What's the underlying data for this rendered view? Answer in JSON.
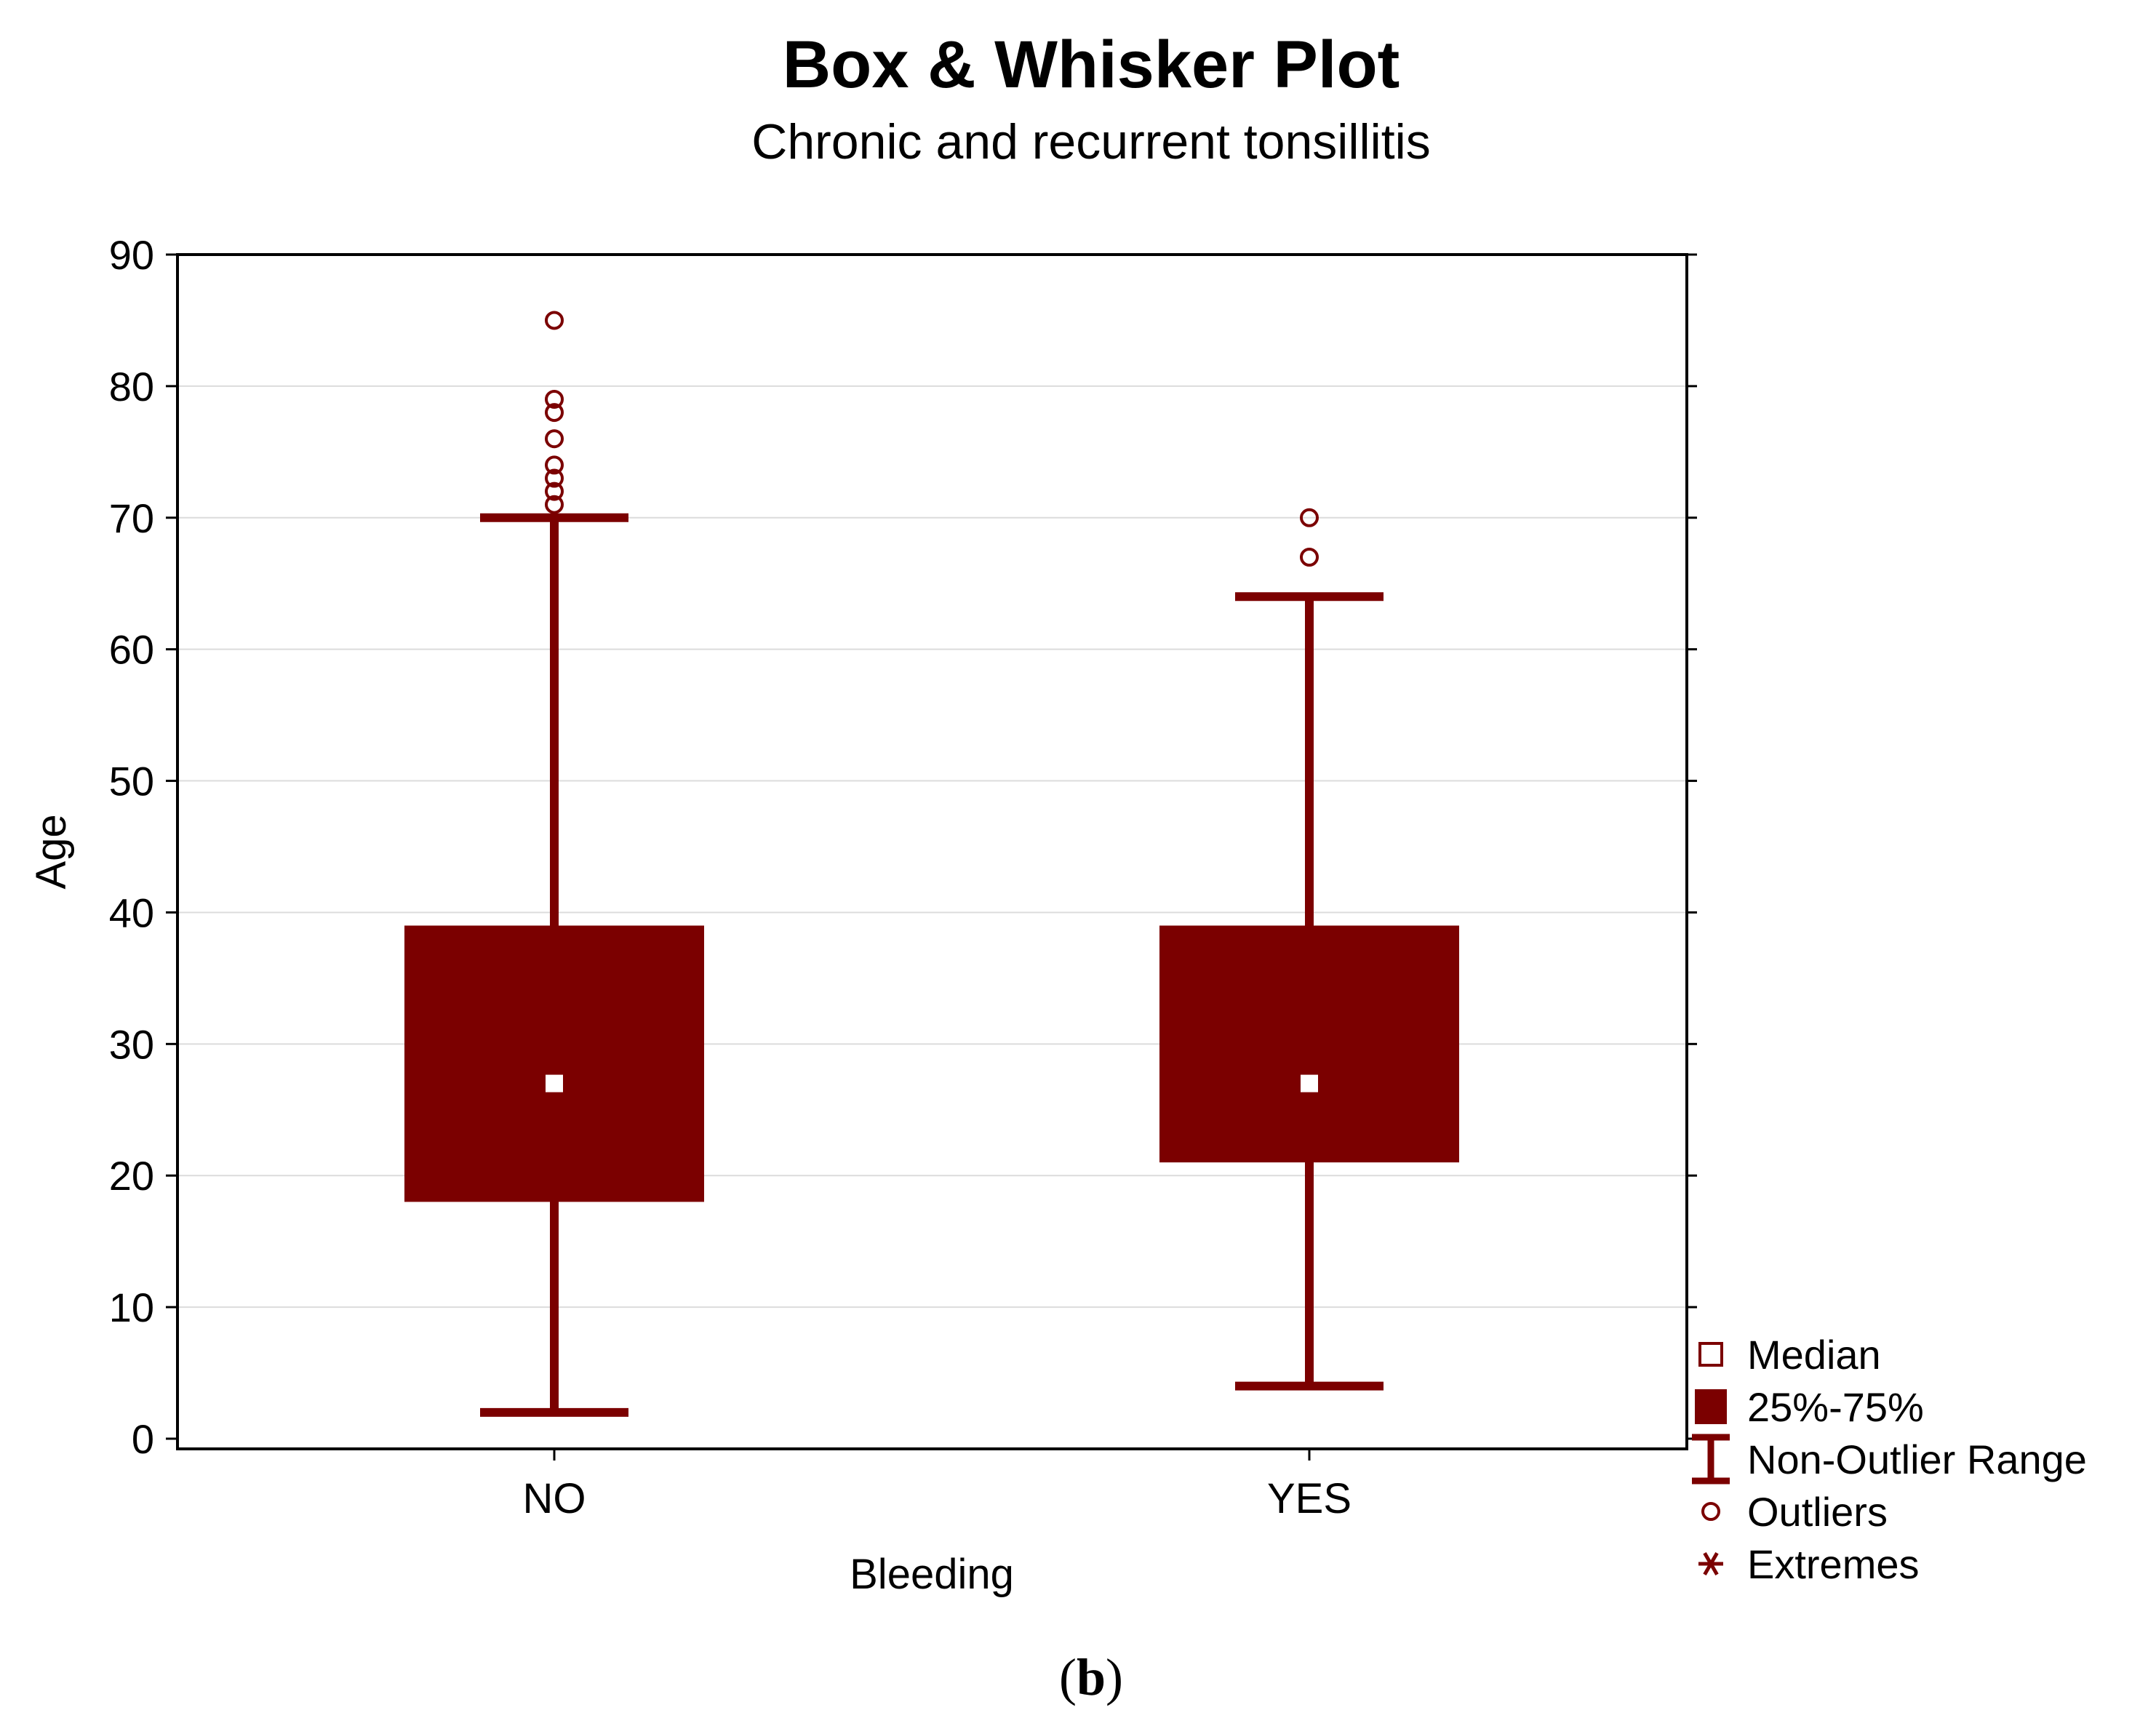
{
  "chart_data": {
    "type": "box",
    "title": "Box & Whisker Plot",
    "subtitle": "Chronic and recurrent tonsillitis",
    "xlabel": "Bleeding",
    "ylabel": "Age",
    "ylim": [
      0,
      90
    ],
    "yticks": [
      0,
      10,
      20,
      30,
      40,
      50,
      60,
      70,
      80,
      90
    ],
    "grid": true,
    "categories": [
      "NO",
      "YES"
    ],
    "boxes": [
      {
        "category": "NO",
        "median": 27,
        "q1": 18,
        "q3": 39,
        "whisker_low": 2,
        "whisker_high": 70,
        "outliers": [
          71,
          72,
          73,
          74,
          76,
          78,
          79,
          85
        ]
      },
      {
        "category": "YES",
        "median": 27,
        "q1": 21,
        "q3": 39,
        "whisker_low": 4,
        "whisker_high": 64,
        "outliers": [
          67,
          70
        ]
      }
    ],
    "legend": {
      "position": "bottom-right",
      "items": [
        {
          "symbol": "median-square-icon",
          "label": "Median"
        },
        {
          "symbol": "box-fill-icon",
          "label": "25%-75%"
        },
        {
          "symbol": "whisker-range-icon",
          "label": "Non-Outlier Range"
        },
        {
          "symbol": "outlier-circle-icon",
          "label": "Outliers"
        },
        {
          "symbol": "extreme-asterisk-icon",
          "label": "Extremes"
        }
      ]
    },
    "colors": {
      "box": "#7b0000",
      "median": "#ffffff",
      "grid": "#dcdcdc",
      "axis": "#000000"
    }
  },
  "panel_label": {
    "open": "(",
    "letter": "b",
    "close": ")"
  }
}
